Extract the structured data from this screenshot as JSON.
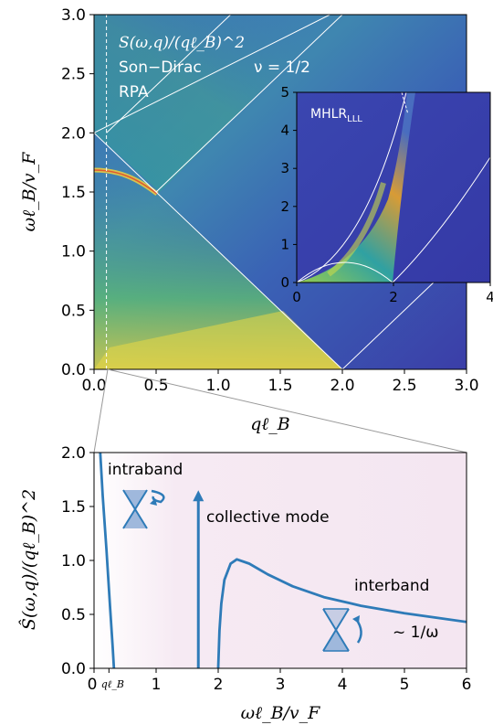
{
  "chart_data": [
    {
      "type": "heatmap",
      "title_lines": [
        "S(ω,q)/(qℓ_B)^2",
        "Son−Dirac",
        "RPA"
      ],
      "nu_label": "ν = 1/2",
      "xlabel": "qℓ_B",
      "ylabel": "ωℓ_B/v_F",
      "xlim": [
        0,
        3
      ],
      "ylim": [
        0,
        3
      ],
      "xticks": [
        "0.0",
        "0.5",
        "1.0",
        "1.5",
        "2.0",
        "2.5",
        "3.0"
      ],
      "yticks": [
        "0.0",
        "0.5",
        "1.0",
        "1.5",
        "2.0",
        "2.5",
        "3.0"
      ],
      "overlay_lines": [
        {
          "kind": "solid",
          "points": [
            [
              0,
              2
            ],
            [
              2,
              0
            ]
          ]
        },
        {
          "kind": "solid",
          "points": [
            [
              0,
              2
            ],
            [
              1.9,
              3
            ]
          ]
        },
        {
          "kind": "solid",
          "points": [
            [
              0.1,
              2.0
            ],
            [
              1.1,
              3
            ]
          ]
        },
        {
          "kind": "solid",
          "points": [
            [
              0.5,
              1.5
            ],
            [
              2,
              3
            ]
          ]
        },
        {
          "kind": "solid",
          "points": [
            [
              0,
              0
            ],
            [
              2,
              0
            ]
          ]
        },
        {
          "kind": "solid",
          "points": [
            [
              2,
              0
            ],
            [
              3,
              1
            ]
          ]
        },
        {
          "kind": "dashed",
          "points": [
            [
              0.1,
              0
            ],
            [
              0.1,
              3
            ]
          ]
        }
      ],
      "collective_mode": {
        "omega_at_q0": 1.68,
        "merges_at": [
          0.5,
          1.45
        ]
      }
    },
    {
      "type": "heatmap",
      "label": "MHLR_LLL",
      "xlim": [
        0,
        4
      ],
      "ylim": [
        0,
        5
      ],
      "xticks": [
        "0",
        "2",
        "4"
      ],
      "yticks": [
        "0",
        "1",
        "2",
        "3",
        "4",
        "5"
      ],
      "overlay_curves": [
        {
          "kind": "parabola-left",
          "from": [
            0,
            0
          ],
          "to": [
            2.5,
            5
          ]
        },
        {
          "kind": "parabola-right",
          "from": [
            2,
            0
          ],
          "to": [
            4,
            3.1
          ]
        },
        {
          "kind": "arc",
          "from": [
            0,
            0
          ],
          "peak": [
            1,
            0.45
          ],
          "to": [
            2,
            0
          ]
        }
      ]
    },
    {
      "type": "line",
      "xlabel": "ωℓ_B/v_F",
      "ylabel": "Ŝ(ω,q)/(qℓ_B)^2",
      "xlim": [
        0,
        6
      ],
      "ylim": [
        0,
        2
      ],
      "xticks": [
        "0",
        "1",
        "2",
        "3",
        "4",
        "5",
        "6"
      ],
      "xtick_extra": "qℓ_B",
      "yticks": [
        "0.0",
        "0.5",
        "1.0",
        "1.5",
        "2.0"
      ],
      "series": [
        {
          "segment": "intraband",
          "x": [
            0.1,
            0.14,
            0.2,
            0.26,
            0.3,
            0.32
          ],
          "y": [
            2.0,
            1.6,
            1.1,
            0.55,
            0.2,
            0.0
          ]
        },
        {
          "segment": "interband",
          "x": [
            2.0,
            2.02,
            2.05,
            2.1,
            2.2,
            2.3,
            2.5,
            2.8,
            3.2,
            3.7,
            4.3,
            5.0,
            5.5,
            6.0
          ],
          "y": [
            0.0,
            0.35,
            0.6,
            0.82,
            0.97,
            1.01,
            0.97,
            0.87,
            0.76,
            0.66,
            0.58,
            0.51,
            0.47,
            0.43
          ]
        }
      ],
      "collective_mode_x": 1.68,
      "collective_mode_height": 1.65,
      "annotations": {
        "intraband": "intraband",
        "collective": "collective mode",
        "interband": "interband",
        "scaling": "~ 1/ω"
      }
    }
  ]
}
